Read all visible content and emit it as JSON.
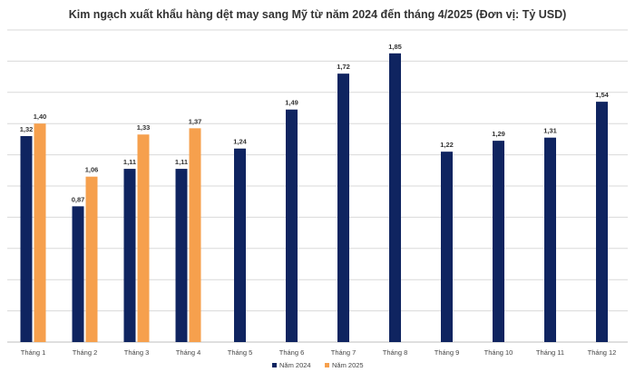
{
  "chart_data": {
    "type": "bar",
    "title": "Kim ngạch xuất khẩu hàng dệt may sang Mỹ từ năm 2024 đến tháng 4/2025 (Đơn vị: Tỷ USD)",
    "xlabel": "",
    "ylabel": "",
    "categories": [
      "Tháng 1",
      "Tháng 2",
      "Tháng 3",
      "Tháng 4",
      "Tháng 5",
      "Tháng 6",
      "Tháng 7",
      "Tháng 8",
      "Tháng 9",
      "Tháng 10",
      "Tháng 11",
      "Tháng 12"
    ],
    "series": [
      {
        "name": "Năm 2024",
        "color": "#0f2460",
        "values": [
          1.32,
          0.87,
          1.11,
          1.11,
          1.24,
          1.49,
          1.72,
          1.85,
          1.22,
          1.29,
          1.31,
          1.54
        ],
        "labels": [
          "1,32",
          "0,87",
          "1,11",
          "1,11",
          "1,24",
          "1,49",
          "1,72",
          "1,85",
          "1,22",
          "1,29",
          "1,31",
          "1,54"
        ]
      },
      {
        "name": "Năm 2025",
        "color": "#f6a04d",
        "values": [
          1.4,
          1.06,
          1.33,
          1.37,
          null,
          null,
          null,
          null,
          null,
          null,
          null,
          null
        ],
        "labels": [
          "1,40",
          "1,06",
          "1,33",
          "1,37",
          "",
          "",
          "",
          "",
          "",
          "",
          "",
          ""
        ]
      }
    ],
    "ylim": [
      0,
      2.0
    ],
    "gridlines": [
      0,
      0.2,
      0.4,
      0.6,
      0.8,
      1.0,
      1.2,
      1.4,
      1.6,
      1.8,
      2.0
    ],
    "grid": true,
    "legend": "bottom-center"
  }
}
